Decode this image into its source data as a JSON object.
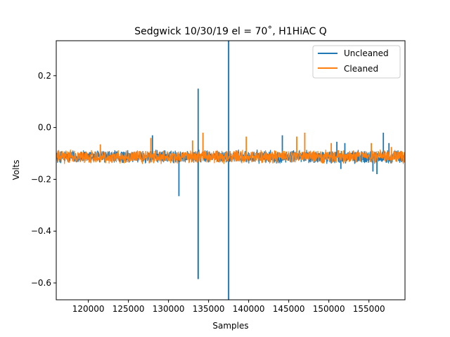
{
  "chart_data": {
    "type": "line",
    "title": "Sedgwick 10/30/19 el = 70˚, H1HiAC Q",
    "xlabel": "Samples",
    "ylabel": "Volts",
    "xlim": [
      116000,
      159500
    ],
    "ylim": [
      -0.665,
      0.335
    ],
    "x_ticks": [
      120000,
      125000,
      130000,
      135000,
      140000,
      145000,
      150000,
      155000
    ],
    "x_tick_labels": [
      "120000",
      "125000",
      "130000",
      "135000",
      "140000",
      "145000",
      "150000",
      "155000"
    ],
    "y_ticks": [
      0.2,
      0.0,
      -0.2,
      -0.4,
      -0.6
    ],
    "y_tick_labels": [
      "0.2",
      "0.0",
      "−0.2",
      "−0.4",
      "−0.6"
    ],
    "grid": false,
    "legend_position": "top-right",
    "baseline": -0.113,
    "series": [
      {
        "name": "Uncleaned",
        "color": "#1f77b4",
        "noise_amplitude": 0.028,
        "spikes": [
          {
            "x": 128000,
            "y": -0.03
          },
          {
            "x": 131300,
            "y": -0.265
          },
          {
            "x": 133700,
            "y": 0.15
          },
          {
            "x": 133700,
            "y": -0.585
          },
          {
            "x": 137500,
            "y": 0.335
          },
          {
            "x": 137500,
            "y": -0.665
          },
          {
            "x": 144200,
            "y": -0.03
          },
          {
            "x": 151000,
            "y": -0.055
          },
          {
            "x": 151500,
            "y": -0.16
          },
          {
            "x": 152000,
            "y": -0.06
          },
          {
            "x": 155500,
            "y": -0.17
          },
          {
            "x": 156000,
            "y": -0.18
          },
          {
            "x": 156800,
            "y": -0.02
          },
          {
            "x": 157500,
            "y": -0.06
          }
        ]
      },
      {
        "name": "Cleaned",
        "color": "#ff7f0e",
        "noise_amplitude": 0.028,
        "spikes": [
          {
            "x": 121500,
            "y": -0.065
          },
          {
            "x": 127800,
            "y": -0.04
          },
          {
            "x": 133000,
            "y": -0.05
          },
          {
            "x": 134300,
            "y": -0.02
          },
          {
            "x": 139700,
            "y": -0.035
          },
          {
            "x": 146000,
            "y": -0.035
          },
          {
            "x": 147000,
            "y": -0.02
          },
          {
            "x": 150300,
            "y": -0.06
          },
          {
            "x": 155300,
            "y": -0.06
          },
          {
            "x": 157800,
            "y": -0.075
          }
        ]
      }
    ]
  }
}
